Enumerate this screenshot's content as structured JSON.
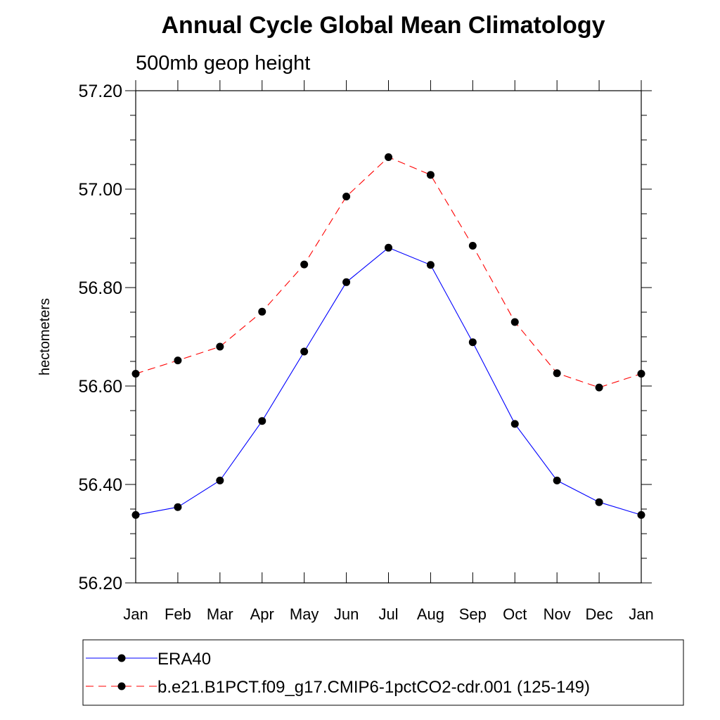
{
  "chart_data": {
    "type": "line",
    "title": "Annual Cycle Global Mean Climatology",
    "subtitle": "500mb geop height",
    "xlabel": "",
    "ylabel": "hectometers",
    "categories": [
      "Jan",
      "Feb",
      "Mar",
      "Apr",
      "May",
      "Jun",
      "Jul",
      "Aug",
      "Sep",
      "Oct",
      "Nov",
      "Dec",
      "Jan"
    ],
    "ylim": [
      56.2,
      57.2
    ],
    "yticks": [
      "56.20",
      "56.40",
      "56.60",
      "56.80",
      "57.00",
      "57.20"
    ],
    "grid": false,
    "legend_position": "bottom",
    "series": [
      {
        "name": "ERA40",
        "color": "#0000ff",
        "style": "solid",
        "marker": "filled-circle",
        "values": [
          56.338,
          56.354,
          56.408,
          56.529,
          56.67,
          56.811,
          56.881,
          56.846,
          56.689,
          56.523,
          56.408,
          56.364,
          56.338
        ]
      },
      {
        "name": "b.e21.B1PCT.f09_g17.CMIP6-1pctCO2-cdr.001 (125-149)",
        "color": "#ff0000",
        "style": "dashed",
        "marker": "filled-circle",
        "values": [
          56.625,
          56.652,
          56.68,
          56.751,
          56.847,
          56.985,
          57.065,
          57.029,
          56.885,
          56.73,
          56.626,
          56.597,
          56.625
        ]
      }
    ]
  }
}
